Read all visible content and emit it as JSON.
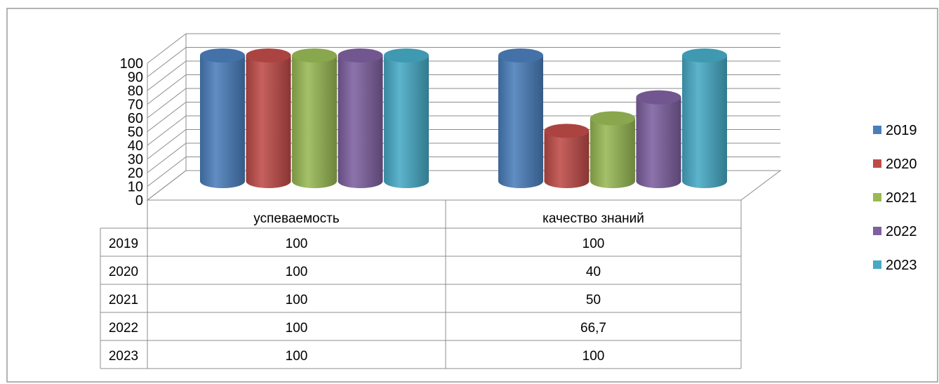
{
  "chart_data": {
    "type": "bar",
    "style": "3d-cylinder",
    "categories": [
      "успеваемость",
      "качество знаний"
    ],
    "series": [
      {
        "name": "2019",
        "color": "#4a7ebb",
        "values": [
          100,
          100
        ]
      },
      {
        "name": "2020",
        "color": "#be4b48",
        "values": [
          100,
          40
        ]
      },
      {
        "name": "2021",
        "color": "#98b954",
        "values": [
          100,
          50
        ]
      },
      {
        "name": "2022",
        "color": "#7d60a0",
        "values": [
          100,
          66.7
        ]
      },
      {
        "name": "2023",
        "color": "#46aac5",
        "values": [
          100,
          100
        ]
      }
    ],
    "ylim": [
      0,
      100
    ],
    "yticks": [
      "0",
      "10",
      "20",
      "30",
      "40",
      "50",
      "60",
      "70",
      "80",
      "90",
      "100"
    ],
    "grid": true,
    "legend": "right",
    "data_table": {
      "rows": [
        {
          "label": "2019",
          "cells": [
            "100",
            "100"
          ]
        },
        {
          "label": "2020",
          "cells": [
            "100",
            "40"
          ]
        },
        {
          "label": "2021",
          "cells": [
            "100",
            "50"
          ]
        },
        {
          "label": "2022",
          "cells": [
            "100",
            "66,7"
          ]
        },
        {
          "label": "2023",
          "cells": [
            "100",
            "100"
          ]
        }
      ]
    }
  }
}
